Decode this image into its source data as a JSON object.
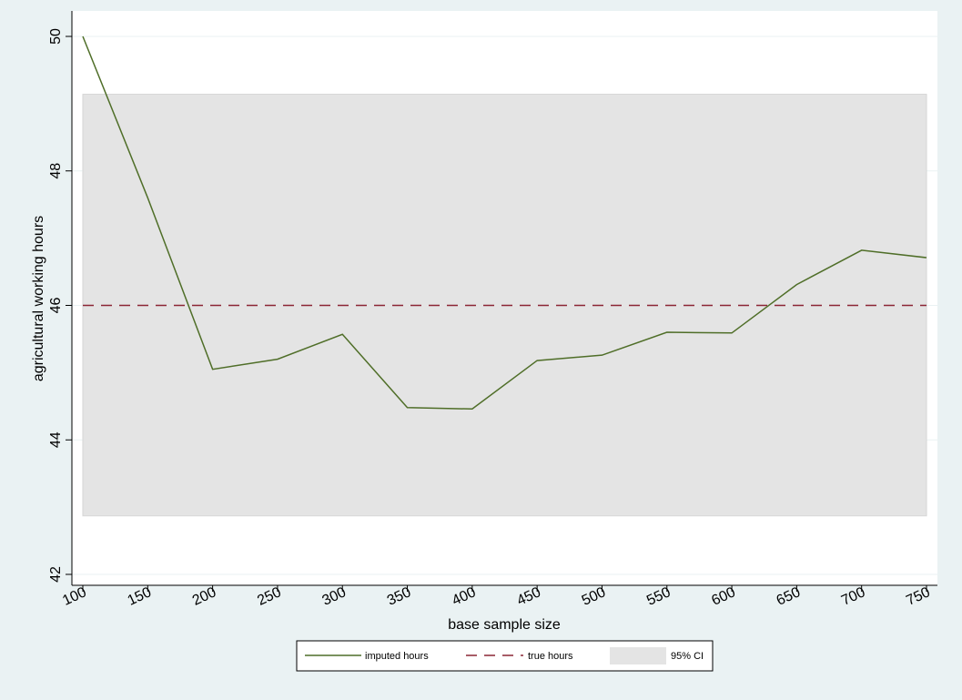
{
  "chart_data": {
    "type": "line",
    "x": [
      100,
      150,
      200,
      250,
      300,
      350,
      400,
      450,
      500,
      550,
      600,
      650,
      700,
      750
    ],
    "xticks": [
      "100",
      "150",
      "200",
      "250",
      "300",
      "350",
      "400",
      "450",
      "500",
      "550",
      "600",
      "650",
      "700",
      "750"
    ],
    "yticks": [
      "42",
      "44",
      "46",
      "48",
      "50"
    ],
    "xlim": [
      100,
      750
    ],
    "ylim": [
      42,
      50
    ],
    "xlabel": "base sample size",
    "ylabel": "agricultural working hours",
    "series": [
      {
        "name": "imputed hours",
        "color": "#4f6e28",
        "values": [
          50.0,
          47.6,
          45.05,
          45.2,
          45.57,
          44.48,
          44.46,
          45.18,
          45.26,
          45.6,
          45.59,
          46.31,
          46.82,
          46.71
        ]
      }
    ],
    "reference_line": {
      "name": "true hours",
      "value": 46.0,
      "color": "#8b2635",
      "style": "dashed"
    },
    "band": {
      "name": "95% CI",
      "lower": 42.87,
      "upper": 49.14,
      "color": "#e4e4e4"
    },
    "grid": true,
    "legend": {
      "position": "bottom-center",
      "entries": [
        "imputed hours",
        "true hours",
        "95% CI"
      ]
    }
  }
}
